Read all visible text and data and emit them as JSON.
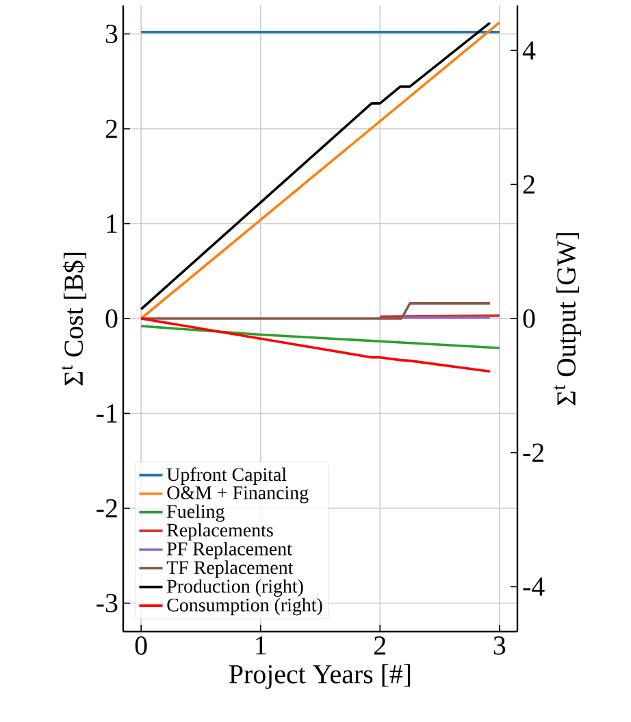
{
  "chart_data": {
    "type": "line",
    "xlabel": "Project Years [#]",
    "ylabel": "Σ$^{t}$ Cost [B$]",
    "y2label": "Σ$^{t}$ Output [GW]",
    "xlim": [
      -0.15,
      3.15
    ],
    "xticks": [
      0,
      1,
      2,
      3
    ],
    "ylim": [
      -3.3,
      3.3
    ],
    "yticks": [
      -3,
      -2,
      -1,
      0,
      1,
      2,
      3
    ],
    "y2lim": [
      -4.67,
      4.67
    ],
    "y2ticks": [
      -4,
      -2,
      0,
      2,
      4
    ],
    "grid": true,
    "legend": "bottom left",
    "line_style": "solid",
    "marker": "none",
    "series": [
      {
        "name": "Upfront Capital",
        "color": "#1f77b4",
        "x": [
          0,
          3
        ],
        "values": [
          3.02,
          3.02
        ]
      },
      {
        "name": "O&M + Financing",
        "color": "#ff7f0e",
        "x": [
          0,
          3
        ],
        "values": [
          0,
          3.12
        ]
      },
      {
        "name": "Fueling",
        "color": "#2ca02c",
        "x": [
          0,
          1,
          2,
          3
        ],
        "values": [
          -0.08,
          -0.17,
          -0.24,
          -0.31
        ]
      },
      {
        "name": "Replacements",
        "color": "#d62728",
        "x": [
          2,
          3
        ],
        "values": [
          0.02,
          0.03
        ]
      },
      {
        "name": "PF Replacement",
        "color": "#9467bd",
        "x": [
          2.2,
          2.92
        ],
        "values": [
          0.01,
          0.01
        ]
      },
      {
        "name": "TF Replacement",
        "color": "#8c564b",
        "x": [
          0,
          2.18,
          2.25,
          2.92
        ],
        "values": [
          0,
          0,
          0.16,
          0.16
        ]
      },
      {
        "name": "Production (right)",
        "color": "#000000",
        "axis": "y2",
        "x": [
          0,
          1.93,
          2.0,
          2.17,
          2.25,
          2.92
        ],
        "values": [
          0.14,
          3.21,
          3.21,
          3.46,
          3.46,
          4.41
        ]
      },
      {
        "name": "Consumption (right)",
        "color": "#ff0000",
        "axis": "y2",
        "x": [
          0,
          1.93,
          2.0,
          2.17,
          2.25,
          2.92
        ],
        "values": [
          0,
          -0.58,
          -0.58,
          -0.62,
          -0.63,
          -0.79
        ]
      }
    ]
  }
}
